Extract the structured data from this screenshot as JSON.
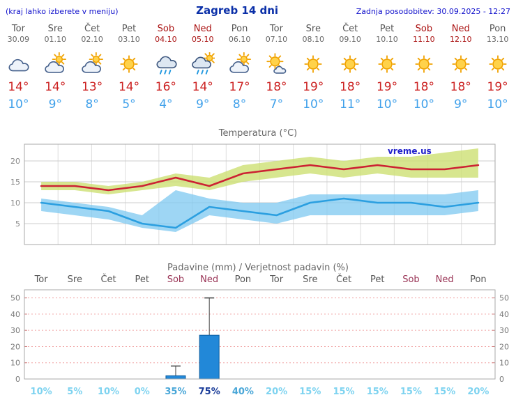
{
  "header": {
    "hint": "(kraj lahko izberete v meniju)",
    "title": "Zagreb 14 dni",
    "updated": "Zadnja posodobitev: 30.09.2025 - 12:27"
  },
  "colors": {
    "link_blue": "#1111cc",
    "title_blue": "#0a2fa8",
    "day_gray": "#555555",
    "date_gray": "#666666",
    "weekend_red": "#aa1111",
    "chart_weekend": "#993355",
    "tmax_red": "#cc2222",
    "tmin_blue": "#3fa0ea",
    "watermark_blue": "#2222cc",
    "bar_fill": "#2288d8",
    "bar_stroke": "#0b5c9e",
    "band_green": "rgba(205,224,115,0.8)",
    "band_blue": "rgba(125,200,240,0.75)"
  },
  "days": [
    {
      "name": "Tor",
      "date": "30.09",
      "weekend": false,
      "icon": "cloudy",
      "tmax": "14°",
      "tmin": "10°"
    },
    {
      "name": "Sre",
      "date": "01.10",
      "weekend": false,
      "icon": "partly-cloudy",
      "tmax": "14°",
      "tmin": "9°"
    },
    {
      "name": "Čet",
      "date": "02.10",
      "weekend": false,
      "icon": "partly-cloudy",
      "tmax": "13°",
      "tmin": "8°"
    },
    {
      "name": "Pet",
      "date": "03.10",
      "weekend": false,
      "icon": "sunny",
      "tmax": "14°",
      "tmin": "5°"
    },
    {
      "name": "Sob",
      "date": "04.10",
      "weekend": true,
      "icon": "rain",
      "tmax": "16°",
      "tmin": "4°"
    },
    {
      "name": "Ned",
      "date": "05.10",
      "weekend": true,
      "icon": "rain-sun",
      "tmax": "14°",
      "tmin": "9°"
    },
    {
      "name": "Pon",
      "date": "06.10",
      "weekend": false,
      "icon": "partly-cloudy",
      "tmax": "17°",
      "tmin": "8°"
    },
    {
      "name": "Tor",
      "date": "07.10",
      "weekend": false,
      "icon": "mostly-sunny",
      "tmax": "18°",
      "tmin": "7°"
    },
    {
      "name": "Sre",
      "date": "08.10",
      "weekend": false,
      "icon": "sunny",
      "tmax": "19°",
      "tmin": "10°"
    },
    {
      "name": "Čet",
      "date": "09.10",
      "weekend": false,
      "icon": "sunny",
      "tmax": "18°",
      "tmin": "11°"
    },
    {
      "name": "Pet",
      "date": "10.10",
      "weekend": false,
      "icon": "sunny",
      "tmax": "19°",
      "tmin": "10°"
    },
    {
      "name": "Sob",
      "date": "11.10",
      "weekend": true,
      "icon": "sunny",
      "tmax": "18°",
      "tmin": "10°"
    },
    {
      "name": "Ned",
      "date": "12.10",
      "weekend": true,
      "icon": "sunny",
      "tmax": "18°",
      "tmin": "9°"
    },
    {
      "name": "Pon",
      "date": "13.10",
      "weekend": false,
      "icon": "sunny",
      "tmax": "19°",
      "tmin": "10°"
    }
  ],
  "chart_data": [
    {
      "type": "line",
      "title": "Temperatura (°C)",
      "watermark": "vreme.us",
      "x_categories": [
        "Tor 30.09",
        "Sre 01.10",
        "Čet 02.10",
        "Pet 03.10",
        "Sob 04.10",
        "Ned 05.10",
        "Pon 06.10",
        "Tor 07.10",
        "Sre 08.10",
        "Čet 09.10",
        "Pet 10.10",
        "Sob 11.10",
        "Ned 12.10",
        "Pon 13.10"
      ],
      "ylim": [
        0,
        24
      ],
      "yticks": [
        5,
        10,
        15,
        20
      ],
      "grid": true,
      "series": [
        {
          "name": "max-temperature",
          "color": "#cc2233",
          "values": [
            14,
            14,
            13,
            14,
            16,
            14,
            17,
            18,
            19,
            18,
            19,
            18,
            18,
            19
          ]
        },
        {
          "name": "min-temperature",
          "color": "#2b9fe0",
          "values": [
            10,
            9,
            8,
            5,
            4,
            9,
            8,
            7,
            10,
            11,
            10,
            10,
            9,
            10
          ]
        }
      ],
      "bands": [
        {
          "name": "max-range",
          "color": "rgba(205,224,115,0.8)",
          "upper": [
            15,
            15,
            14,
            15,
            17,
            16,
            19,
            20,
            21,
            20,
            21,
            21,
            22,
            23
          ],
          "lower": [
            13,
            13,
            12,
            13,
            14,
            13,
            15,
            16,
            17,
            16,
            17,
            16,
            16,
            16
          ]
        },
        {
          "name": "min-range",
          "color": "rgba(125,200,240,0.75)",
          "upper": [
            11,
            10,
            9,
            7,
            13,
            11,
            10,
            10,
            12,
            12,
            12,
            12,
            12,
            13
          ],
          "lower": [
            8,
            7,
            6,
            4,
            3,
            7,
            6,
            5,
            7,
            7,
            7,
            7,
            7,
            8
          ]
        }
      ]
    },
    {
      "type": "bar",
      "title": "Padavine (mm) / Verjetnost padavin (%)",
      "day_labels": [
        "Tor",
        "Sre",
        "Čet",
        "Pet",
        "Sob",
        "Ned",
        "Pon",
        "Tor",
        "Sre",
        "Čet",
        "Pet",
        "Sob",
        "Ned",
        "Pon"
      ],
      "weekend_flags": [
        false,
        false,
        false,
        false,
        true,
        true,
        false,
        false,
        false,
        false,
        false,
        true,
        true,
        false
      ],
      "ylim": [
        0,
        55
      ],
      "yticks": [
        0,
        10,
        20,
        30,
        40,
        50
      ],
      "values_mm": [
        0,
        0,
        0,
        0,
        2,
        27,
        0,
        0,
        0,
        0,
        0,
        0,
        0,
        0
      ],
      "whisker_max": [
        0,
        0,
        0,
        0,
        8,
        50,
        0,
        0,
        0,
        0,
        0,
        0,
        0,
        0
      ],
      "probabilities": [
        "10%",
        "5%",
        "10%",
        "0%",
        "35%",
        "75%",
        "40%",
        "20%",
        "15%",
        "15%",
        "15%",
        "15%",
        "15%",
        "20%"
      ],
      "prob_colors": [
        "#7ed3f0",
        "#7ed3f0",
        "#7ed3f0",
        "#7ed3f0",
        "#4aa7d8",
        "#1b3d99",
        "#4aa7d8",
        "#7ed3f0",
        "#7ed3f0",
        "#7ed3f0",
        "#7ed3f0",
        "#7ed3f0",
        "#7ed3f0",
        "#7ed3f0"
      ]
    }
  ]
}
